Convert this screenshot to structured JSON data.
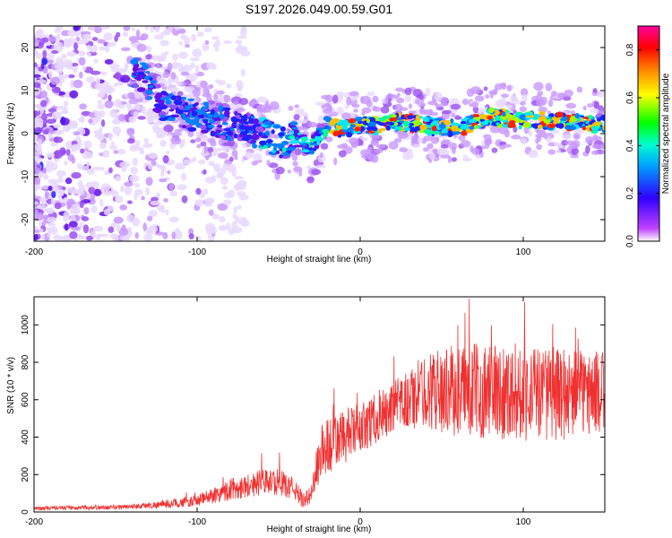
{
  "title": "S197.2026.049.00.59.G01",
  "chart_data": [
    {
      "type": "heatmap",
      "name": "spectrogram",
      "xlabel": "Height of straight line (km)",
      "ylabel": "Frequency (Hz)",
      "xlim": [
        -200,
        150
      ],
      "ylim": [
        -25,
        25
      ],
      "xticks": [
        "-200",
        "-100",
        "0",
        "100"
      ],
      "xtick_values": [
        -200,
        -100,
        0,
        100
      ],
      "yticks": [
        "20",
        "10",
        "0",
        "-10",
        "-20"
      ],
      "ytick_values": [
        20,
        10,
        0,
        -10,
        -20
      ],
      "colorbar": {
        "label": "Normalized spectral amplitude",
        "range": [
          0,
          0.9
        ],
        "ticks": [
          "0.0",
          "0.2",
          "0.4",
          "0.6",
          "0.8"
        ],
        "tick_values": [
          0.0,
          0.2,
          0.4,
          0.6,
          0.8
        ],
        "colormap": [
          "#ffffff",
          "#8a2be2",
          "#0000ff",
          "#00ffff",
          "#00ff00",
          "#ffff00",
          "#ff8000",
          "#ff0000",
          "#ff00a0"
        ]
      },
      "ridge": {
        "description_points_x_km": [
          -135,
          -120,
          -100,
          -80,
          -60,
          -50,
          -40,
          -30,
          -20,
          -10,
          0,
          10,
          20,
          40,
          60,
          80,
          100,
          120,
          150
        ],
        "frequency_hz": [
          14,
          6,
          4,
          2,
          0,
          -2,
          -1,
          -3,
          2,
          1,
          2,
          2,
          3,
          2,
          1,
          4,
          3,
          3,
          2
        ]
      }
    },
    {
      "type": "line",
      "name": "snr",
      "xlabel": "Height of straight line (km)",
      "ylabel": "SNR (10 * v/v)",
      "xlim": [
        -200,
        150
      ],
      "ylim": [
        0,
        1150
      ],
      "xticks": [
        "-200",
        "-100",
        "0",
        "100"
      ],
      "xtick_values": [
        -200,
        -100,
        0,
        100
      ],
      "yticks": [
        "0",
        "200",
        "400",
        "600",
        "800",
        "1000"
      ],
      "ytick_values": [
        0,
        200,
        400,
        600,
        800,
        1000
      ],
      "color": "#f03030",
      "envelope_x": [
        -200,
        -150,
        -120,
        -100,
        -80,
        -60,
        -50,
        -40,
        -35,
        -30,
        -25,
        -20,
        -10,
        0,
        20,
        40,
        60,
        80,
        100,
        120,
        150
      ],
      "envelope_mean": [
        20,
        25,
        40,
        60,
        120,
        160,
        160,
        120,
        60,
        90,
        300,
        350,
        400,
        450,
        550,
        650,
        650,
        650,
        640,
        630,
        640
      ],
      "envelope_spread": [
        10,
        12,
        20,
        30,
        60,
        70,
        70,
        60,
        40,
        50,
        150,
        160,
        150,
        130,
        140,
        200,
        250,
        260,
        260,
        250,
        220
      ]
    }
  ]
}
